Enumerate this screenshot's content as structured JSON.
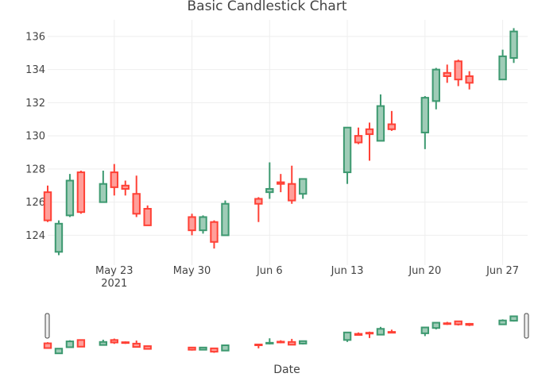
{
  "chart_data": {
    "type": "candlestick",
    "title": "Basic Candlestick Chart",
    "xlabel": "Date",
    "ylabel": "",
    "ylim": [
      122.2,
      137.0
    ],
    "yticks": [
      124,
      126,
      128,
      130,
      132,
      134,
      136
    ],
    "xticks": [
      {
        "date": "2021-05-23",
        "label": "May 23",
        "sublabel": "2021"
      },
      {
        "date": "2021-05-30",
        "label": "May 30",
        "sublabel": ""
      },
      {
        "date": "2021-06-06",
        "label": "Jun 6",
        "sublabel": ""
      },
      {
        "date": "2021-06-13",
        "label": "Jun 13",
        "sublabel": ""
      },
      {
        "date": "2021-06-20",
        "label": "Jun 20",
        "sublabel": ""
      },
      {
        "date": "2021-06-27",
        "label": "Jun 27",
        "sublabel": ""
      }
    ],
    "xrange": [
      "2021-05-17",
      "2021-06-29T06:00"
    ],
    "colors": {
      "increasing": "#3d9970",
      "decreasing": "#ff4136",
      "increasing_fill": "#9fccb7",
      "decreasing_fill": "#ff9f9a"
    },
    "candles": [
      {
        "date": "2021-05-17",
        "open": 126.6,
        "high": 127.0,
        "low": 124.8,
        "close": 124.9
      },
      {
        "date": "2021-05-18",
        "open": 123.0,
        "high": 124.9,
        "low": 122.8,
        "close": 124.7
      },
      {
        "date": "2021-05-19",
        "open": 125.2,
        "high": 127.7,
        "low": 125.1,
        "close": 127.3
      },
      {
        "date": "2021-05-20",
        "open": 127.8,
        "high": 127.9,
        "low": 125.3,
        "close": 125.4
      },
      {
        "date": "2021-05-22",
        "open": 126.0,
        "high": 127.9,
        "low": 126.0,
        "close": 127.1
      },
      {
        "date": "2021-05-23",
        "open": 127.8,
        "high": 128.3,
        "low": 126.4,
        "close": 126.9
      },
      {
        "date": "2021-05-24",
        "open": 127.0,
        "high": 127.3,
        "low": 126.4,
        "close": 126.8
      },
      {
        "date": "2021-05-25",
        "open": 126.5,
        "high": 127.6,
        "low": 125.1,
        "close": 125.3
      },
      {
        "date": "2021-05-26",
        "open": 125.6,
        "high": 125.8,
        "low": 124.6,
        "close": 124.6
      },
      {
        "date": "2021-05-30",
        "open": 125.1,
        "high": 125.3,
        "low": 124.0,
        "close": 124.3
      },
      {
        "date": "2021-05-31",
        "open": 124.3,
        "high": 125.2,
        "low": 124.1,
        "close": 125.1
      },
      {
        "date": "2021-06-01",
        "open": 124.8,
        "high": 124.9,
        "low": 123.2,
        "close": 123.6
      },
      {
        "date": "2021-06-02",
        "open": 124.0,
        "high": 126.1,
        "low": 124.0,
        "close": 125.9
      },
      {
        "date": "2021-06-05",
        "open": 126.2,
        "high": 126.3,
        "low": 124.8,
        "close": 125.9
      },
      {
        "date": "2021-06-06",
        "open": 126.6,
        "high": 128.4,
        "low": 126.2,
        "close": 126.8
      },
      {
        "date": "2021-06-07",
        "open": 127.2,
        "high": 127.7,
        "low": 126.6,
        "close": 127.1
      },
      {
        "date": "2021-06-08",
        "open": 127.1,
        "high": 128.2,
        "low": 125.9,
        "close": 126.1
      },
      {
        "date": "2021-06-09",
        "open": 126.5,
        "high": 127.4,
        "low": 126.2,
        "close": 127.4
      },
      {
        "date": "2021-06-13",
        "open": 127.8,
        "high": 130.5,
        "low": 127.1,
        "close": 130.5
      },
      {
        "date": "2021-06-14",
        "open": 130.0,
        "high": 130.5,
        "low": 129.5,
        "close": 129.6
      },
      {
        "date": "2021-06-15",
        "open": 130.4,
        "high": 130.8,
        "low": 128.5,
        "close": 130.1
      },
      {
        "date": "2021-06-16",
        "open": 129.7,
        "high": 132.5,
        "low": 129.7,
        "close": 131.8
      },
      {
        "date": "2021-06-17",
        "open": 130.7,
        "high": 131.5,
        "low": 130.3,
        "close": 130.4
      },
      {
        "date": "2021-06-20",
        "open": 130.2,
        "high": 132.4,
        "low": 129.2,
        "close": 132.3
      },
      {
        "date": "2021-06-21",
        "open": 132.1,
        "high": 134.1,
        "low": 131.6,
        "close": 134.0
      },
      {
        "date": "2021-06-22",
        "open": 133.8,
        "high": 134.3,
        "low": 133.2,
        "close": 133.6
      },
      {
        "date": "2021-06-23",
        "open": 134.5,
        "high": 134.6,
        "low": 133.0,
        "close": 133.4
      },
      {
        "date": "2021-06-24",
        "open": 133.6,
        "high": 133.9,
        "low": 132.8,
        "close": 133.2
      },
      {
        "date": "2021-06-27",
        "open": 133.4,
        "high": 135.2,
        "low": 133.4,
        "close": 134.8
      },
      {
        "date": "2021-06-28",
        "open": 134.7,
        "high": 136.5,
        "low": 134.4,
        "close": 136.3
      }
    ],
    "rangeslider": true,
    "grid": true,
    "legend": "none"
  }
}
